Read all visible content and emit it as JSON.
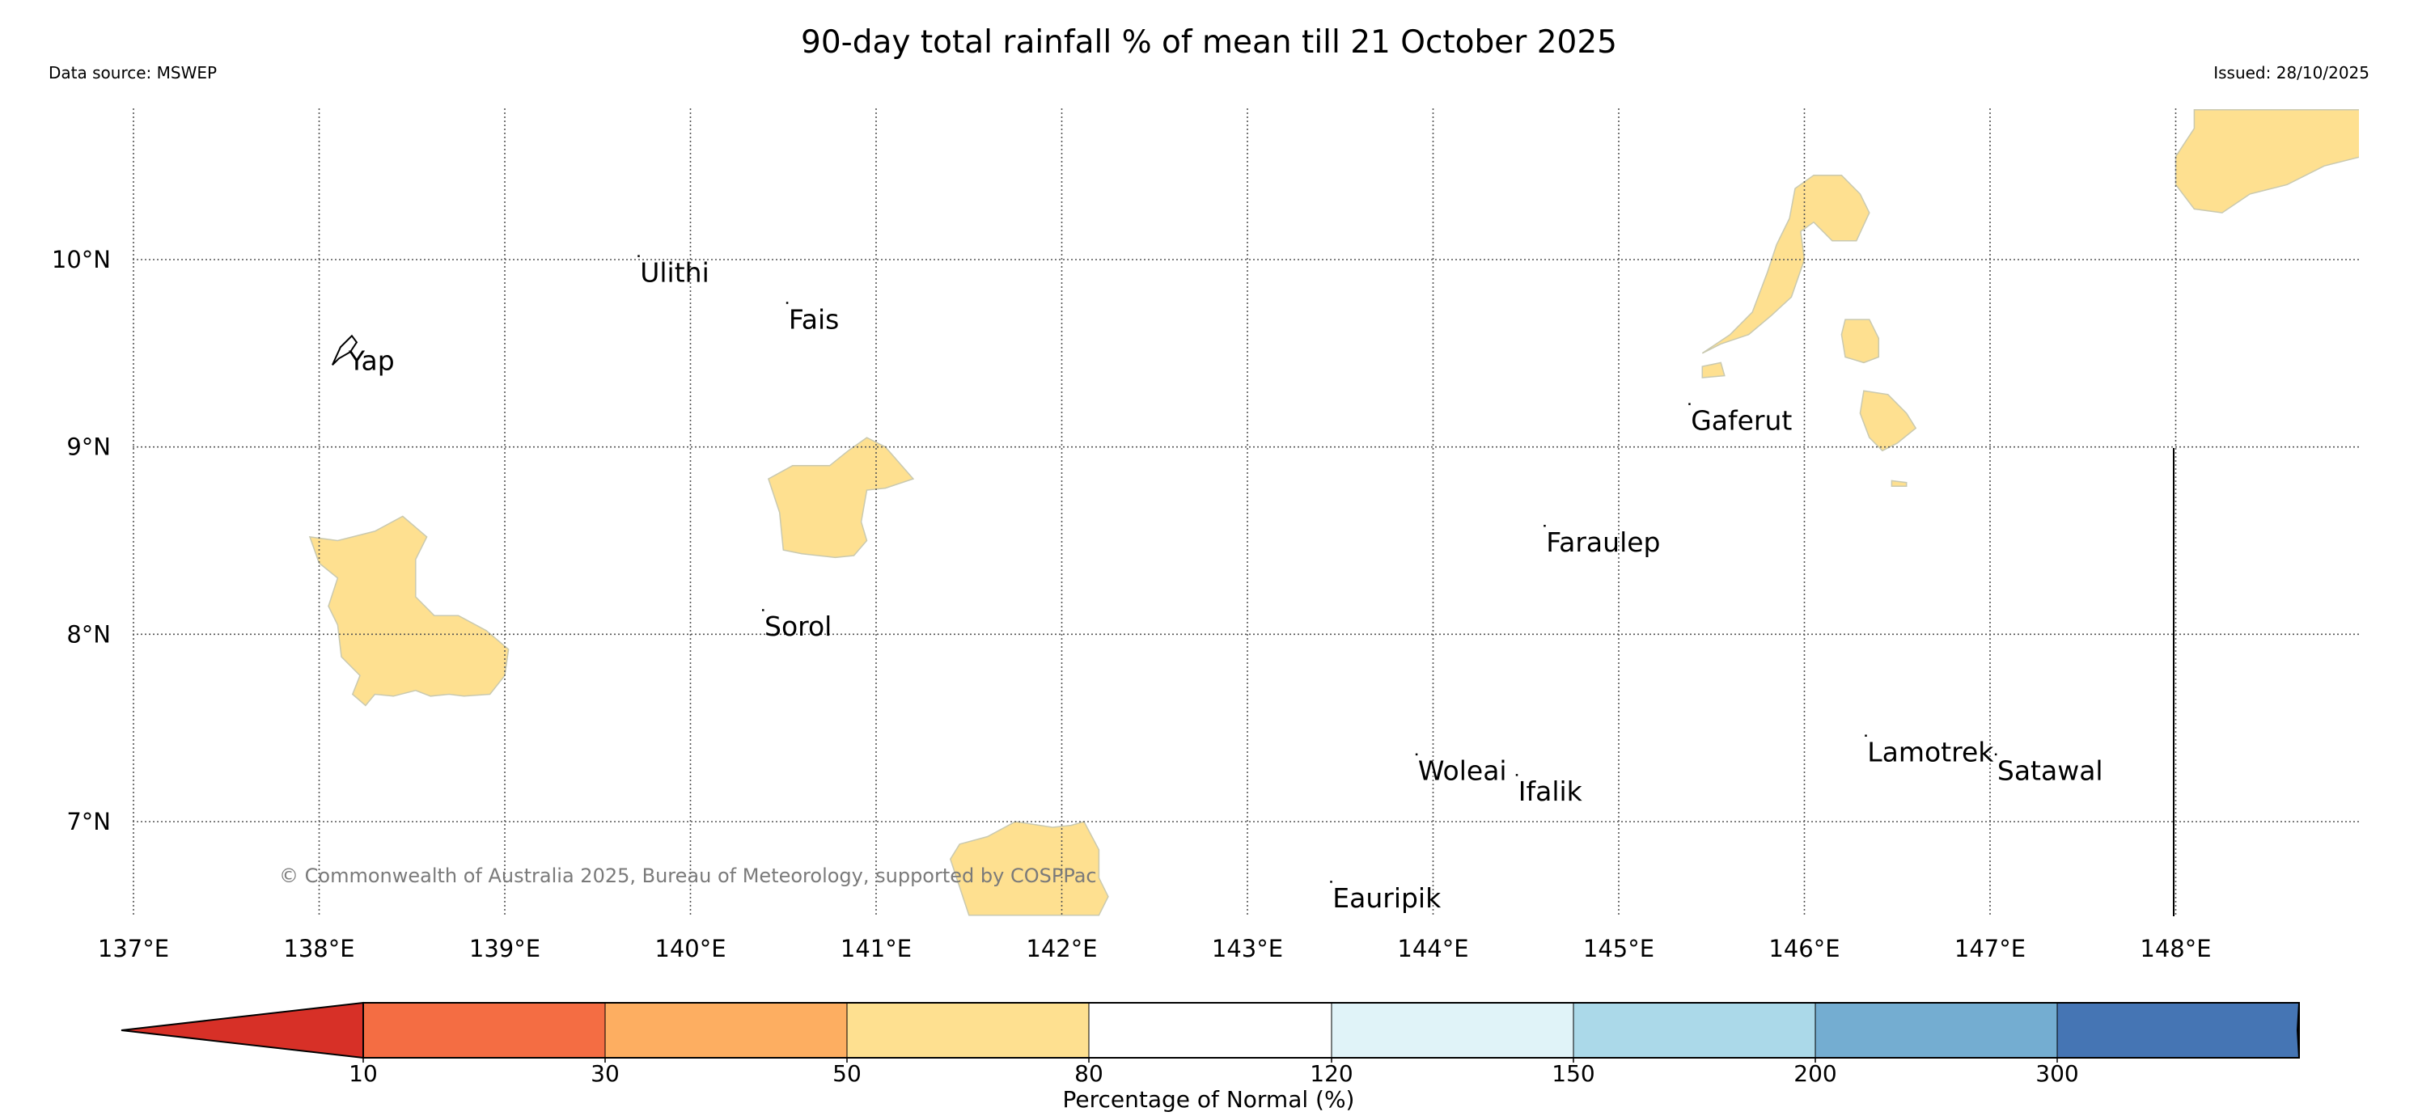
{
  "header": {
    "title": "90-day total rainfall % of mean till 21 October 2025",
    "data_source": "Data source: MSWEP",
    "issued": "Issued: 28/10/2025"
  },
  "map": {
    "extent": {
      "lon": [
        137.0,
        149.0
      ],
      "lat": [
        6.5,
        10.8
      ]
    },
    "lon_ticks": [
      137,
      138,
      139,
      140,
      141,
      142,
      143,
      144,
      145,
      146,
      147,
      148
    ],
    "lon_labels": [
      "137°E",
      "138°E",
      "139°E",
      "140°E",
      "141°E",
      "142°E",
      "143°E",
      "144°E",
      "145°E",
      "146°E",
      "147°E",
      "148°E"
    ],
    "lat_ticks": [
      7,
      8,
      9,
      10
    ],
    "lat_labels": [
      "7°N",
      "8°N",
      "9°N",
      "10°N"
    ],
    "gridlines": true,
    "copyright": "© Commonwealth of Australia 2025, Bureau of Meteorology, supported by COSPPac",
    "places": [
      {
        "name": "Yap",
        "lon": 138.15,
        "lat": 9.55
      },
      {
        "name": "Ulithi",
        "lon": 139.72,
        "lat": 10.02
      },
      {
        "name": "Fais",
        "lon": 140.52,
        "lat": 9.77
      },
      {
        "name": "Sorol",
        "lon": 140.39,
        "lat": 8.13
      },
      {
        "name": "Gaferut",
        "lon": 145.38,
        "lat": 9.23
      },
      {
        "name": "Faraulep",
        "lon": 144.6,
        "lat": 8.58
      },
      {
        "name": "Woleai",
        "lon": 143.91,
        "lat": 7.36
      },
      {
        "name": "Ifalik",
        "lon": 144.45,
        "lat": 7.25
      },
      {
        "name": "Lamotrek",
        "lon": 146.33,
        "lat": 7.46
      },
      {
        "name": "Satawal",
        "lon": 147.03,
        "lat": 7.36
      },
      {
        "name": "Eauripik",
        "lon": 143.45,
        "lat": 6.68
      }
    ],
    "anomaly_regions": [
      {
        "category": "50-80",
        "color": "#fee090",
        "points": [
          [
            137.95,
            8.52
          ],
          [
            138.1,
            8.5
          ],
          [
            138.3,
            8.55
          ],
          [
            138.45,
            8.63
          ],
          [
            138.58,
            8.52
          ],
          [
            138.52,
            8.4
          ],
          [
            138.52,
            8.2
          ],
          [
            138.62,
            8.1
          ],
          [
            138.75,
            8.1
          ],
          [
            138.9,
            8.02
          ],
          [
            139.02,
            7.92
          ],
          [
            139.0,
            7.78
          ],
          [
            138.92,
            7.68
          ],
          [
            138.78,
            7.67
          ],
          [
            138.7,
            7.68
          ],
          [
            138.6,
            7.67
          ],
          [
            138.52,
            7.7
          ],
          [
            138.4,
            7.67
          ],
          [
            138.3,
            7.68
          ],
          [
            138.25,
            7.62
          ],
          [
            138.18,
            7.68
          ],
          [
            138.22,
            7.78
          ],
          [
            138.12,
            7.88
          ],
          [
            138.1,
            8.05
          ],
          [
            138.05,
            8.15
          ],
          [
            138.1,
            8.3
          ],
          [
            138.0,
            8.38
          ]
        ]
      },
      {
        "category": "50-80",
        "color": "#fee090",
        "points": [
          [
            140.42,
            8.83
          ],
          [
            140.55,
            8.9
          ],
          [
            140.75,
            8.9
          ],
          [
            140.85,
            8.98
          ],
          [
            140.95,
            9.05
          ],
          [
            141.05,
            9.0
          ],
          [
            141.2,
            8.83
          ],
          [
            141.05,
            8.78
          ],
          [
            140.95,
            8.77
          ],
          [
            140.92,
            8.6
          ],
          [
            140.95,
            8.5
          ],
          [
            140.88,
            8.42
          ],
          [
            140.78,
            8.41
          ],
          [
            140.6,
            8.43
          ],
          [
            140.5,
            8.45
          ],
          [
            140.48,
            8.65
          ]
        ]
      },
      {
        "category": "50-80",
        "color": "#fee090",
        "points": [
          [
            141.45,
            6.88
          ],
          [
            141.6,
            6.92
          ],
          [
            141.75,
            7.0
          ],
          [
            141.95,
            6.97
          ],
          [
            142.05,
            6.98
          ],
          [
            142.12,
            7.0
          ],
          [
            142.2,
            6.85
          ],
          [
            142.2,
            6.7
          ],
          [
            142.25,
            6.6
          ],
          [
            142.2,
            6.5
          ],
          [
            141.5,
            6.5
          ],
          [
            141.45,
            6.65
          ],
          [
            141.4,
            6.8
          ]
        ]
      },
      {
        "category": "50-80",
        "color": "#fee090",
        "points": [
          [
            145.45,
            9.5
          ],
          [
            145.6,
            9.6
          ],
          [
            145.72,
            9.72
          ],
          [
            145.8,
            9.93
          ],
          [
            145.85,
            10.08
          ],
          [
            145.92,
            10.22
          ],
          [
            145.95,
            10.38
          ],
          [
            146.05,
            10.45
          ],
          [
            146.2,
            10.45
          ],
          [
            146.3,
            10.35
          ],
          [
            146.35,
            10.25
          ],
          [
            146.28,
            10.1
          ],
          [
            146.15,
            10.1
          ],
          [
            146.05,
            10.2
          ],
          [
            145.98,
            10.15
          ],
          [
            146.0,
            10.0
          ],
          [
            145.93,
            9.8
          ],
          [
            145.82,
            9.7
          ],
          [
            145.7,
            9.6
          ],
          [
            145.55,
            9.55
          ]
        ]
      },
      {
        "category": "50-80",
        "color": "#fee090",
        "points": [
          [
            145.45,
            9.43
          ],
          [
            145.55,
            9.45
          ],
          [
            145.57,
            9.38
          ],
          [
            145.45,
            9.37
          ]
        ]
      },
      {
        "category": "50-80",
        "color": "#fee090",
        "points": [
          [
            146.22,
            9.68
          ],
          [
            146.35,
            9.68
          ],
          [
            146.4,
            9.58
          ],
          [
            146.4,
            9.48
          ],
          [
            146.32,
            9.45
          ],
          [
            146.22,
            9.48
          ],
          [
            146.2,
            9.6
          ]
        ]
      },
      {
        "category": "50-80",
        "color": "#fee090",
        "points": [
          [
            146.32,
            9.3
          ],
          [
            146.45,
            9.28
          ],
          [
            146.55,
            9.18
          ],
          [
            146.6,
            9.1
          ],
          [
            146.5,
            9.02
          ],
          [
            146.42,
            8.98
          ],
          [
            146.35,
            9.05
          ],
          [
            146.3,
            9.18
          ]
        ]
      },
      {
        "category": "50-80",
        "color": "#fee090",
        "points": [
          [
            146.47,
            8.82
          ],
          [
            146.55,
            8.81
          ],
          [
            146.55,
            8.79
          ],
          [
            146.47,
            8.79
          ]
        ]
      },
      {
        "category": "50-80",
        "color": "#fee090",
        "points": [
          [
            148.1,
            10.8
          ],
          [
            149.0,
            10.8
          ],
          [
            149.0,
            10.55
          ],
          [
            148.8,
            10.5
          ],
          [
            148.6,
            10.4
          ],
          [
            148.4,
            10.35
          ],
          [
            148.25,
            10.25
          ],
          [
            148.1,
            10.27
          ],
          [
            148.0,
            10.4
          ],
          [
            148.0,
            10.55
          ],
          [
            148.1,
            10.7
          ]
        ]
      }
    ]
  },
  "colorbar": {
    "title": "Percentage of Normal (%)",
    "tick_labels": [
      "10",
      "30",
      "50",
      "80",
      "120",
      "150",
      "200",
      "300"
    ],
    "segments": [
      {
        "range": "<10",
        "color": "#d73027"
      },
      {
        "range": "10-30",
        "color": "#f46d43"
      },
      {
        "range": "30-50",
        "color": "#fdae61"
      },
      {
        "range": "50-80",
        "color": "#fee090"
      },
      {
        "range": "80-120",
        "color": "#ffffff"
      },
      {
        "range": "120-150",
        "color": "#e0f3f8"
      },
      {
        "range": "150-200",
        "color": "#abd9e9"
      },
      {
        "range": "200-300",
        "color": "#74add1"
      },
      {
        "range": ">300",
        "color": "#4575b4"
      }
    ]
  }
}
